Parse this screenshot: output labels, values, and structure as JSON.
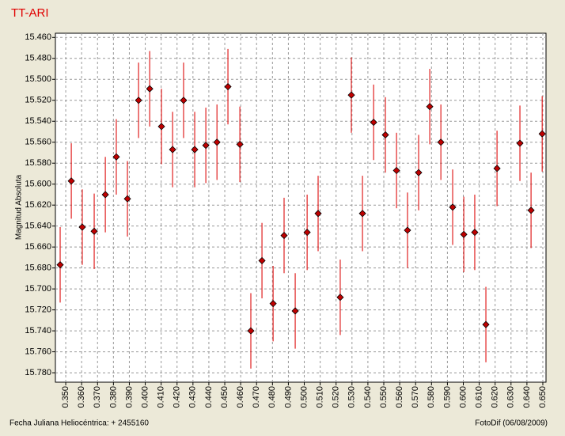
{
  "chart_data": {
    "type": "scatter",
    "title": "TT-ARI",
    "ylabel": "Magnitud Absoluta",
    "xlabel": "Fecha Juliana Heliocéntrica:  + 2455160",
    "footer": "FotoDif (06/08/2009)",
    "x": [
      0.3465,
      0.3535,
      0.3604,
      0.3679,
      0.3749,
      0.3818,
      0.3888,
      0.3958,
      0.4028,
      0.4102,
      0.4172,
      0.4241,
      0.4311,
      0.4381,
      0.4451,
      0.452,
      0.4595,
      0.4664,
      0.4734,
      0.4804,
      0.4873,
      0.4943,
      0.5018,
      0.5087,
      0.5226,
      0.5296,
      0.5366,
      0.5436,
      0.551,
      0.558,
      0.5649,
      0.5719,
      0.5789,
      0.5859,
      0.5933,
      0.6003,
      0.6072,
      0.6142,
      0.6212,
      0.6356,
      0.6426,
      0.6496
    ],
    "values": [
      15.677,
      15.597,
      15.641,
      15.645,
      15.61,
      15.574,
      15.614,
      15.52,
      15.509,
      15.545,
      15.567,
      15.52,
      15.567,
      15.563,
      15.56,
      15.507,
      15.562,
      15.74,
      15.673,
      15.714,
      15.649,
      15.721,
      15.646,
      15.628,
      15.708,
      15.515,
      15.628,
      15.541,
      15.553,
      15.587,
      15.644,
      15.589,
      15.526,
      15.56,
      15.622,
      15.648,
      15.646,
      15.734,
      15.585,
      15.561,
      15.625,
      15.552
    ],
    "errors": [
      0.036,
      0.036,
      0.036,
      0.036,
      0.036,
      0.036,
      0.036,
      0.036,
      0.036,
      0.036,
      0.036,
      0.036,
      0.036,
      0.036,
      0.036,
      0.036,
      0.036,
      0.036,
      0.036,
      0.036,
      0.036,
      0.036,
      0.036,
      0.036,
      0.036,
      0.036,
      0.036,
      0.036,
      0.036,
      0.036,
      0.036,
      0.036,
      0.036,
      0.036,
      0.036,
      0.036,
      0.036,
      0.036,
      0.036,
      0.036,
      0.036,
      0.036
    ],
    "color": "#c00000",
    "error_color": "#e02020",
    "xlim": [
      0.3435,
      0.652
    ],
    "ylim": [
      15.456,
      15.789
    ],
    "y_inverted": true,
    "grid": true,
    "xticks": [
      {
        "value": 0.35,
        "label": "0.350"
      },
      {
        "value": 0.36,
        "label": "0.360"
      },
      {
        "value": 0.37,
        "label": "0.370"
      },
      {
        "value": 0.38,
        "label": "0.380"
      },
      {
        "value": 0.39,
        "label": "0.390"
      },
      {
        "value": 0.4,
        "label": "0.400"
      },
      {
        "value": 0.41,
        "label": "0.410"
      },
      {
        "value": 0.42,
        "label": "0.420"
      },
      {
        "value": 0.43,
        "label": "0.430"
      },
      {
        "value": 0.44,
        "label": "0.440"
      },
      {
        "value": 0.45,
        "label": "0.450"
      },
      {
        "value": 0.46,
        "label": "0.460"
      },
      {
        "value": 0.47,
        "label": "0.470"
      },
      {
        "value": 0.48,
        "label": "0.480"
      },
      {
        "value": 0.49,
        "label": "0.490"
      },
      {
        "value": 0.5,
        "label": "0.500"
      },
      {
        "value": 0.51,
        "label": "0.510"
      },
      {
        "value": 0.52,
        "label": "0.520"
      },
      {
        "value": 0.53,
        "label": "0.530"
      },
      {
        "value": 0.54,
        "label": "0.540"
      },
      {
        "value": 0.55,
        "label": "0.550"
      },
      {
        "value": 0.56,
        "label": "0.560"
      },
      {
        "value": 0.57,
        "label": "0.570"
      },
      {
        "value": 0.58,
        "label": "0.580"
      },
      {
        "value": 0.59,
        "label": "0.590"
      },
      {
        "value": 0.6,
        "label": "0.600"
      },
      {
        "value": 0.61,
        "label": "0.610"
      },
      {
        "value": 0.62,
        "label": "0.620"
      },
      {
        "value": 0.63,
        "label": "0.630"
      },
      {
        "value": 0.64,
        "label": "0.640"
      },
      {
        "value": 0.65,
        "label": "0.650"
      }
    ],
    "yticks": [
      {
        "value": 15.46,
        "label": "15.460"
      },
      {
        "value": 15.48,
        "label": "15.480"
      },
      {
        "value": 15.5,
        "label": "15.500"
      },
      {
        "value": 15.52,
        "label": "15.520"
      },
      {
        "value": 15.54,
        "label": "15.540"
      },
      {
        "value": 15.56,
        "label": "15.560"
      },
      {
        "value": 15.58,
        "label": "15.580"
      },
      {
        "value": 15.6,
        "label": "15.600"
      },
      {
        "value": 15.62,
        "label": "15.620"
      },
      {
        "value": 15.64,
        "label": "15.640"
      },
      {
        "value": 15.66,
        "label": "15.660"
      },
      {
        "value": 15.68,
        "label": "15.680"
      },
      {
        "value": 15.7,
        "label": "15.700"
      },
      {
        "value": 15.72,
        "label": "15.720"
      },
      {
        "value": 15.74,
        "label": "15.740"
      },
      {
        "value": 15.76,
        "label": "15.760"
      },
      {
        "value": 15.78,
        "label": "15.780"
      }
    ]
  }
}
